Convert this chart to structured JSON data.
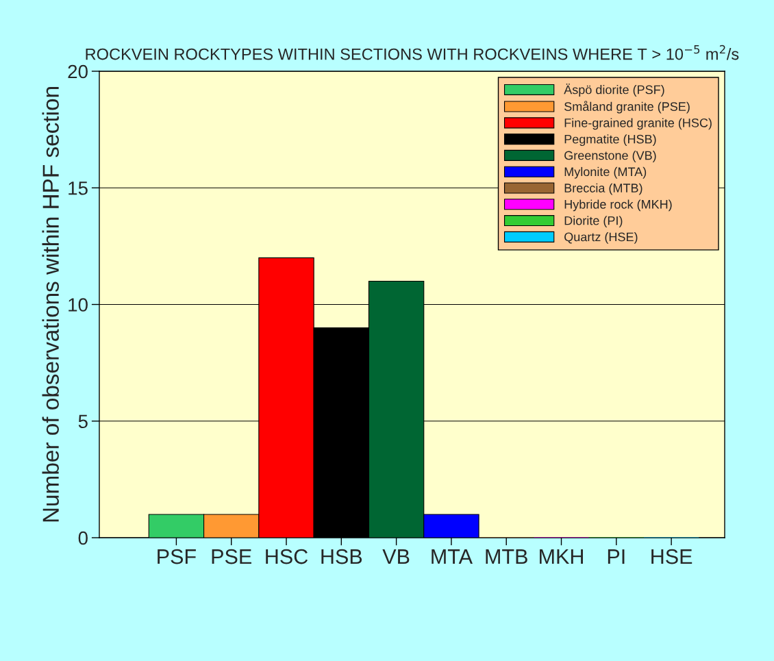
{
  "chart_data": {
    "type": "bar",
    "title": "ROCKVEIN ROCKTYPES WITHIN SECTIONS WITH ROCKVEINS WHERE T > 10$^{−5}$ m$^{2}$/s",
    "ylabel": "Number of observations within HPF section",
    "categories": [
      "PSF",
      "PSE",
      "HSC",
      "HSB",
      "VB",
      "MTA",
      "MTB",
      "MKH",
      "PI",
      "HSE"
    ],
    "series": [
      {
        "name": "Äspö diorite (PSF)",
        "color": "#33cc66",
        "values": [
          1,
          null,
          null,
          null,
          null,
          null,
          null,
          null,
          null,
          null
        ]
      },
      {
        "name": "Småland granite (PSE)",
        "color": "#ff9933",
        "values": [
          null,
          1,
          null,
          null,
          null,
          null,
          null,
          null,
          null,
          null
        ]
      },
      {
        "name": "Fine-grained granite (HSC)",
        "color": "#ff0000",
        "values": [
          null,
          null,
          12,
          null,
          null,
          null,
          null,
          null,
          null,
          null
        ]
      },
      {
        "name": "Pegmatite (HSB)",
        "color": "#000000",
        "values": [
          null,
          null,
          null,
          9,
          null,
          null,
          null,
          null,
          null,
          null
        ]
      },
      {
        "name": "Greenstone (VB)",
        "color": "#006633",
        "values": [
          null,
          null,
          null,
          null,
          11,
          null,
          null,
          null,
          null,
          null
        ]
      },
      {
        "name": "Mylonite (MTA)",
        "color": "#0000ff",
        "values": [
          null,
          null,
          null,
          null,
          null,
          1,
          null,
          null,
          null,
          null
        ]
      },
      {
        "name": "Breccia (MTB)",
        "color": "#996633",
        "values": [
          null,
          null,
          null,
          null,
          null,
          null,
          0,
          null,
          null,
          null
        ]
      },
      {
        "name": "Hybride rock (MKH)",
        "color": "#ff00ff",
        "values": [
          null,
          null,
          null,
          null,
          null,
          null,
          null,
          0,
          null,
          null
        ]
      },
      {
        "name": "Diorite (PI)",
        "color": "#33cc33",
        "values": [
          null,
          null,
          null,
          null,
          null,
          null,
          null,
          null,
          0,
          null
        ]
      },
      {
        "name": "Quartz (HSE)",
        "color": "#00ccff",
        "values": [
          null,
          null,
          null,
          null,
          null,
          null,
          null,
          null,
          null,
          0
        ]
      }
    ],
    "ylim": [
      0,
      20
    ],
    "yticks": [
      0,
      5,
      10,
      15,
      20
    ],
    "grid": "y",
    "legend": "top right"
  }
}
